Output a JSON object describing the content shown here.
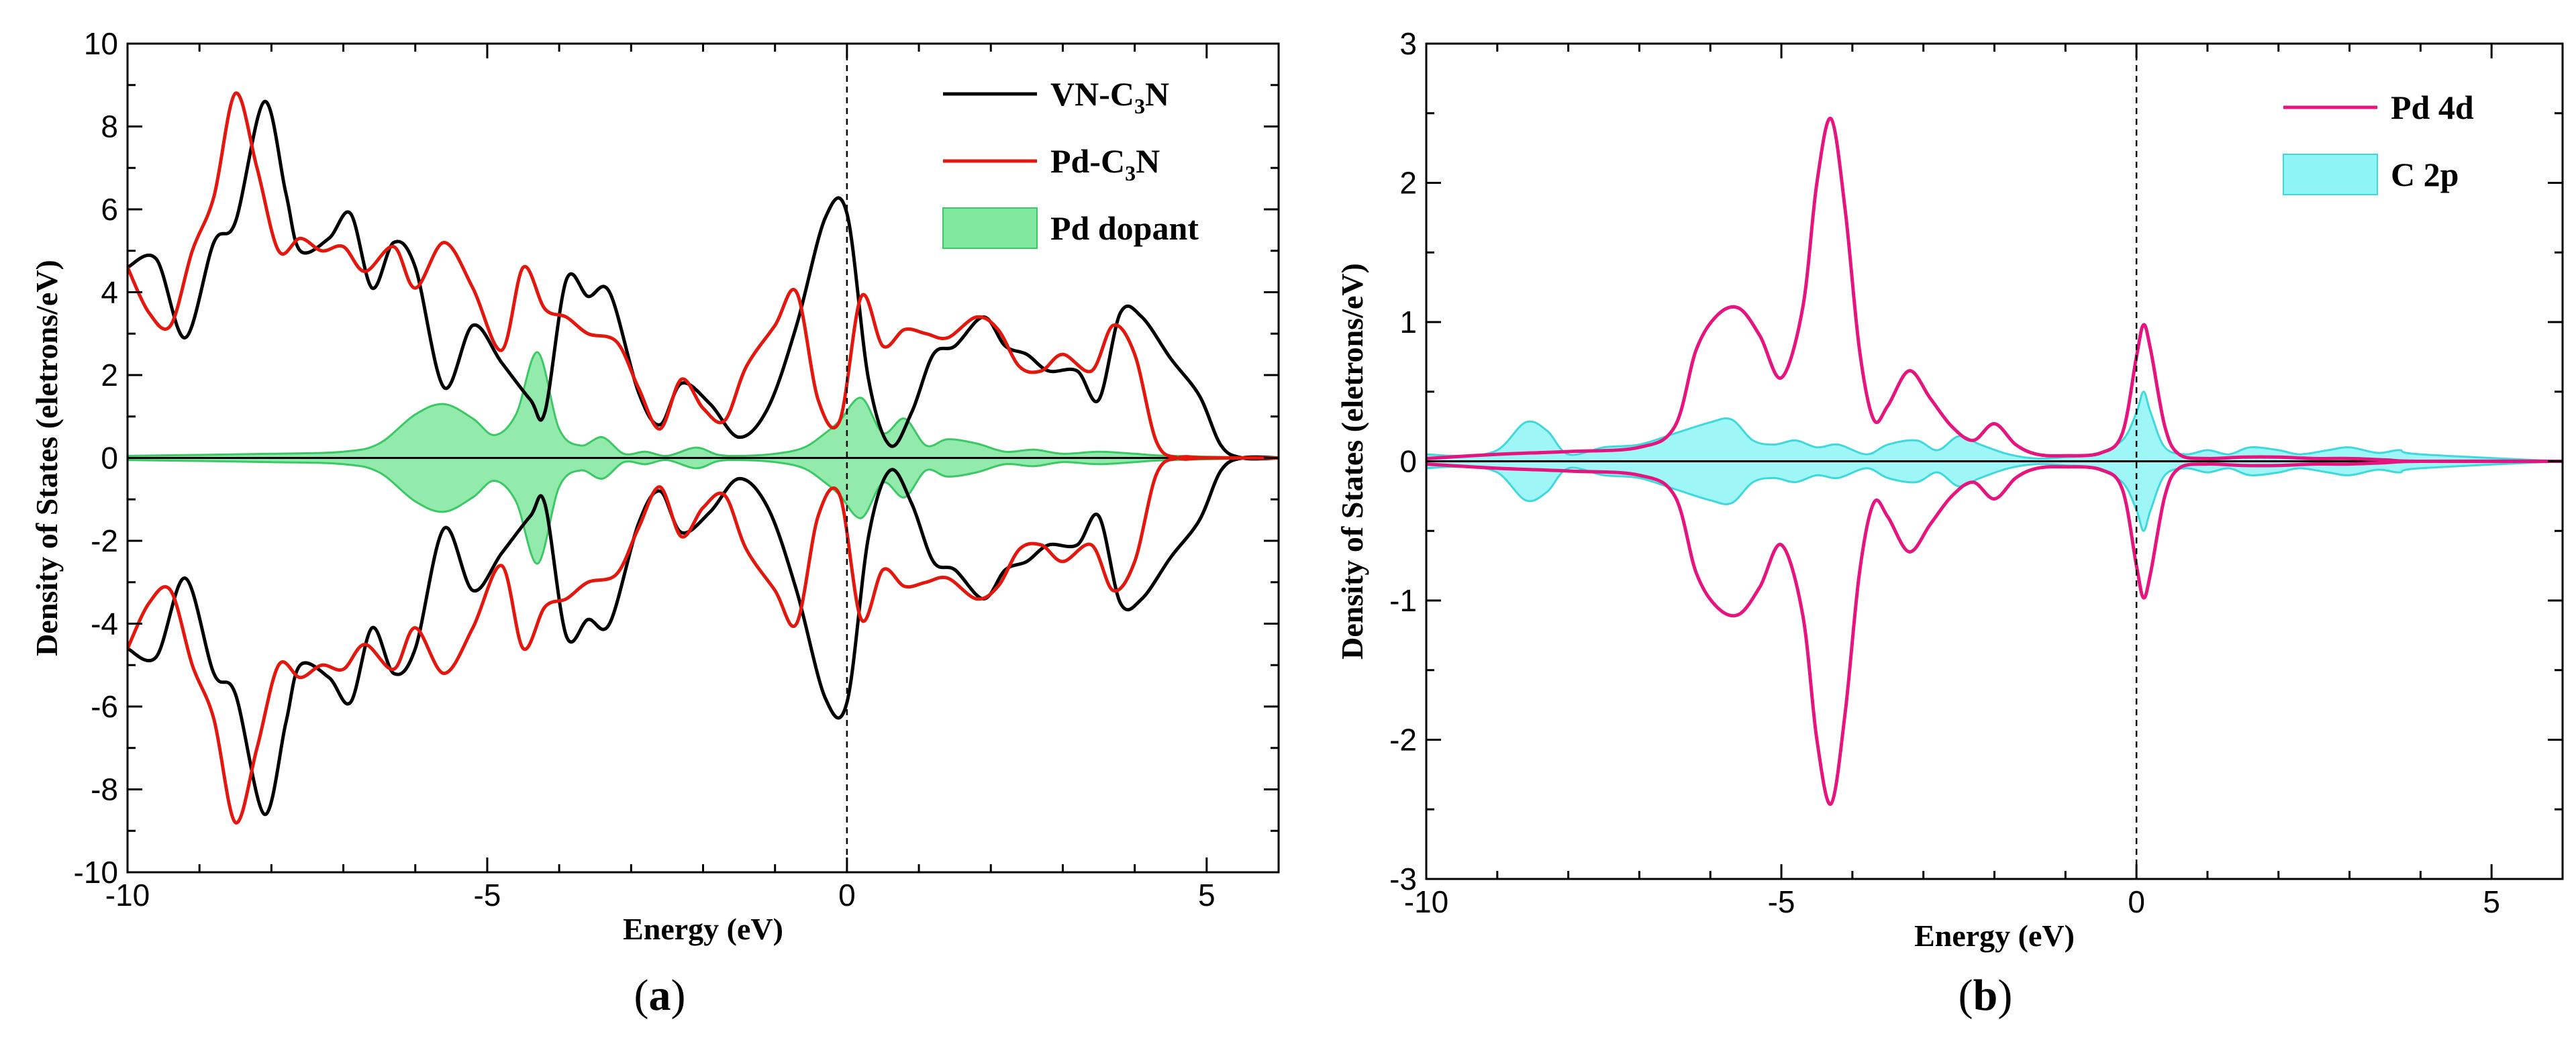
{
  "chart_data": [
    {
      "type": "line",
      "panel": "a",
      "panel_label_open": "(",
      "panel_label_letter": "a",
      "panel_label_close": ")",
      "xlabel": "Energy (eV)",
      "ylabel": "Density of States (eletrons/eV)",
      "xlim": [
        -10,
        6
      ],
      "ylim": [
        -10,
        10
      ],
      "xticks": [
        -10,
        -5,
        0,
        5
      ],
      "yticks": [
        -10,
        -8,
        -6,
        -4,
        -2,
        0,
        2,
        4,
        6,
        8,
        10
      ],
      "fermi_level": 0,
      "legend_position": "top-right",
      "series": [
        {
          "name": "VN-C3N",
          "label_parts": [
            "VN-C",
            "3",
            "N"
          ],
          "style": "line",
          "color": "#000000",
          "mirror": true,
          "x": [
            -10,
            -9.6,
            -9.2,
            -8.8,
            -8.5,
            -8.1,
            -7.8,
            -7.6,
            -7.2,
            -6.9,
            -6.6,
            -6.3,
            -6.0,
            -5.6,
            -5.2,
            -4.8,
            -4.4,
            -4.2,
            -3.9,
            -3.6,
            -3.3,
            -2.9,
            -2.6,
            -2.3,
            -1.9,
            -1.5,
            -1.1,
            -0.7,
            -0.3,
            0.0,
            0.3,
            0.6,
            0.9,
            1.2,
            1.5,
            1.9,
            2.2,
            2.5,
            2.8,
            3.2,
            3.5,
            3.8,
            4.1,
            4.5,
            4.9,
            5.2,
            5.5,
            6.0
          ],
          "values": [
            4.6,
            4.8,
            2.9,
            5.2,
            5.7,
            8.6,
            6.4,
            5.0,
            5.3,
            5.9,
            4.1,
            5.2,
            4.6,
            1.7,
            3.2,
            2.3,
            1.4,
            1.1,
            4.3,
            3.9,
            4.0,
            1.6,
            0.8,
            1.8,
            1.3,
            0.5,
            1.2,
            3.2,
            5.8,
            5.9,
            1.9,
            0.3,
            1.1,
            2.5,
            2.7,
            3.4,
            2.7,
            2.5,
            2.1,
            2.1,
            1.4,
            3.5,
            3.4,
            2.4,
            1.5,
            0.3,
            0.0,
            0.0
          ]
        },
        {
          "name": "Pd-C3N",
          "label_parts": [
            "Pd-C",
            "3",
            "N"
          ],
          "style": "line",
          "color": "#e3170d",
          "mirror": true,
          "x": [
            -10,
            -9.7,
            -9.4,
            -9.1,
            -8.8,
            -8.5,
            -8.2,
            -7.9,
            -7.6,
            -7.3,
            -7.0,
            -6.7,
            -6.3,
            -6.0,
            -5.6,
            -5.2,
            -4.8,
            -4.5,
            -4.2,
            -3.9,
            -3.6,
            -3.2,
            -2.9,
            -2.6,
            -2.3,
            -2.0,
            -1.7,
            -1.4,
            -1.0,
            -0.7,
            -0.4,
            -0.1,
            0.2,
            0.5,
            0.8,
            1.1,
            1.4,
            1.8,
            2.1,
            2.4,
            2.7,
            3.0,
            3.4,
            3.7,
            4.0,
            4.3,
            4.6,
            5.0,
            6.0
          ],
          "values": [
            4.6,
            3.5,
            3.2,
            5.0,
            6.3,
            8.8,
            7.0,
            5.0,
            5.3,
            5.0,
            5.1,
            4.5,
            5.1,
            4.1,
            5.2,
            4.1,
            2.6,
            4.6,
            3.6,
            3.4,
            3.0,
            2.8,
            1.7,
            0.7,
            1.9,
            1.2,
            0.9,
            2.2,
            3.2,
            4.0,
            1.4,
            0.9,
            3.9,
            2.7,
            3.1,
            3.0,
            2.9,
            3.4,
            3.1,
            2.2,
            2.1,
            2.5,
            2.1,
            3.2,
            2.5,
            0.4,
            0.0,
            0.0,
            0.0
          ]
        },
        {
          "name": "Pd dopant",
          "label_parts": [
            "Pd dopant"
          ],
          "style": "fill",
          "color": "#7fe89e",
          "edge_color": "#3cc865",
          "mirror": true,
          "x": [
            -10,
            -8,
            -7,
            -6.5,
            -6,
            -5.6,
            -5.2,
            -4.9,
            -4.6,
            -4.3,
            -4.0,
            -3.7,
            -3.4,
            -3.1,
            -2.8,
            -2.5,
            -2.1,
            -1.8,
            -1.5,
            -1.0,
            -0.6,
            -0.3,
            -0.1,
            0.2,
            0.5,
            0.8,
            1.1,
            1.4,
            1.8,
            2.2,
            2.6,
            3.0,
            3.5,
            4.0,
            4.5,
            6.0
          ],
          "values": [
            0.05,
            0.1,
            0.15,
            0.35,
            1.05,
            1.3,
            0.95,
            0.55,
            1.05,
            2.55,
            0.7,
            0.3,
            0.5,
            0.1,
            0.15,
            0.05,
            0.25,
            0.08,
            0.05,
            0.1,
            0.25,
            0.6,
            0.9,
            1.45,
            0.6,
            0.95,
            0.3,
            0.45,
            0.35,
            0.15,
            0.2,
            0.1,
            0.15,
            0.1,
            0.05,
            0.0
          ]
        }
      ]
    },
    {
      "type": "line",
      "panel": "b",
      "panel_label_open": "(",
      "panel_label_letter": "b",
      "panel_label_close": ")",
      "xlabel": "Energy (eV)",
      "ylabel": "Density of States (eletrons/eV)",
      "xlim": [
        -10,
        6
      ],
      "ylim": [
        -3,
        3
      ],
      "xticks": [
        -10,
        -5,
        0,
        5
      ],
      "yticks": [
        -3,
        -2,
        -1,
        0,
        1,
        2,
        3
      ],
      "fermi_level": 0,
      "legend_position": "top-right",
      "series": [
        {
          "name": "Pd 4d",
          "label_parts": [
            "Pd 4d"
          ],
          "style": "line",
          "color": "#e6147e",
          "mirror": true,
          "x": [
            -10,
            -9,
            -8,
            -7,
            -6.5,
            -6.2,
            -5.9,
            -5.6,
            -5.3,
            -5.0,
            -4.7,
            -4.5,
            -4.3,
            -4.1,
            -3.9,
            -3.7,
            -3.5,
            -3.2,
            -2.9,
            -2.6,
            -2.3,
            -2.0,
            -1.7,
            -1.4,
            -1.0,
            -0.5,
            -0.2,
            0.0,
            0.1,
            0.2,
            0.4,
            0.6,
            1.0,
            1.5,
            2.0,
            2.5,
            3.0,
            3.5,
            4.0,
            6.0
          ],
          "values": [
            0.02,
            0.05,
            0.07,
            0.1,
            0.25,
            0.8,
            1.05,
            1.1,
            0.9,
            0.6,
            1.1,
            2.0,
            2.46,
            1.8,
            0.8,
            0.3,
            0.4,
            0.65,
            0.45,
            0.25,
            0.15,
            0.27,
            0.12,
            0.05,
            0.04,
            0.06,
            0.2,
            0.75,
            0.98,
            0.8,
            0.25,
            0.05,
            0.02,
            0.03,
            0.03,
            0.02,
            0.02,
            0.01,
            0.0,
            0.0
          ]
        },
        {
          "name": "C 2p",
          "label_parts": [
            "C 2p"
          ],
          "style": "fill",
          "color": "#8ef4f6",
          "edge_color": "#3fd9dd",
          "mirror": true,
          "x": [
            -10,
            -9.5,
            -9,
            -8.6,
            -8.3,
            -8.0,
            -7.5,
            -7.0,
            -6.5,
            -6.0,
            -5.7,
            -5.4,
            -5.1,
            -4.8,
            -4.5,
            -4.2,
            -3.8,
            -3.5,
            -3.1,
            -2.8,
            -2.5,
            -2.2,
            -1.8,
            -1.4,
            -1.0,
            -0.6,
            -0.2,
            0.0,
            0.1,
            0.2,
            0.4,
            0.7,
            1.0,
            1.3,
            1.6,
            2.0,
            2.3,
            2.7,
            3.0,
            3.4,
            3.7,
            4.0,
            6.0
          ],
          "values": [
            0.05,
            0.04,
            0.08,
            0.28,
            0.22,
            0.05,
            0.1,
            0.12,
            0.2,
            0.28,
            0.3,
            0.15,
            0.12,
            0.15,
            0.1,
            0.12,
            0.05,
            0.12,
            0.15,
            0.08,
            0.18,
            0.12,
            0.05,
            0.02,
            0.03,
            0.05,
            0.15,
            0.35,
            0.5,
            0.35,
            0.1,
            0.05,
            0.08,
            0.05,
            0.1,
            0.08,
            0.05,
            0.08,
            0.1,
            0.06,
            0.08,
            0.05,
            0.0
          ]
        }
      ]
    }
  ]
}
